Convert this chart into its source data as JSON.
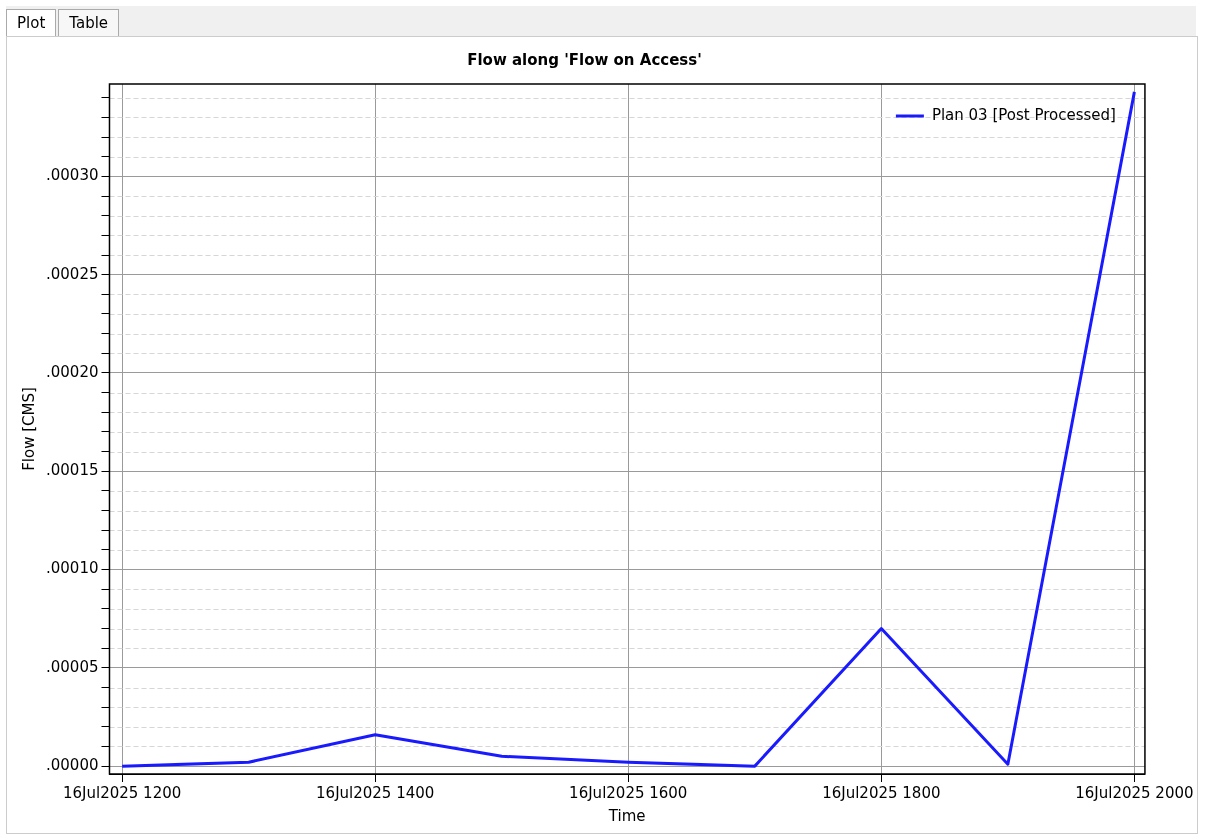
{
  "chart_data": {
    "type": "line",
    "title": "Flow along 'Flow on Access'",
    "xlabel": "Time",
    "ylabel": "Flow [CMS]",
    "annotations": [
      "Plot",
      "Table"
    ],
    "x": [
      "2025-07-16T12:00",
      "2025-07-16T13:00",
      "2025-07-16T14:00",
      "2025-07-16T15:00",
      "2025-07-16T16:00",
      "2025-07-16T17:00",
      "2025-07-16T18:00",
      "2025-07-16T19:00",
      "2025-07-16T20:00"
    ],
    "series": [
      {
        "name": "Plan 03 [Post Processed]",
        "color": "#1a1aff",
        "values": [
          0,
          2e-06,
          1.6e-05,
          5e-06,
          2e-06,
          0,
          7e-05,
          1e-06,
          0.000343
        ]
      }
    ],
    "xlim": [
      "2025-07-16T11:54",
      "2025-07-16T20:05"
    ],
    "xticks": [
      {
        "value": "2025-07-16T12:00",
        "label": "16Jul2025 1200"
      },
      {
        "value": "2025-07-16T14:00",
        "label": "16Jul2025 1400"
      },
      {
        "value": "2025-07-16T16:00",
        "label": "16Jul2025 1600"
      },
      {
        "value": "2025-07-16T18:00",
        "label": "16Jul2025 1800"
      },
      {
        "value": "2025-07-16T20:00",
        "label": "16Jul2025 2000"
      }
    ],
    "ylim": [
      -4e-06,
      0.000347
    ],
    "yticks": [
      {
        "value": 0,
        "label": ".00000"
      },
      {
        "value": 1e-05,
        "label": null
      },
      {
        "value": 2e-05,
        "label": null
      },
      {
        "value": 3e-05,
        "label": null
      },
      {
        "value": 4e-05,
        "label": null
      },
      {
        "value": 5e-05,
        "label": ".00005"
      },
      {
        "value": 6e-05,
        "label": null
      },
      {
        "value": 7e-05,
        "label": null
      },
      {
        "value": 8e-05,
        "label": null
      },
      {
        "value": 9e-05,
        "label": null
      },
      {
        "value": 0.0001,
        "label": ".00010"
      },
      {
        "value": 0.00011,
        "label": null
      },
      {
        "value": 0.00012,
        "label": null
      },
      {
        "value": 0.00013,
        "label": null
      },
      {
        "value": 0.00014,
        "label": null
      },
      {
        "value": 0.00015,
        "label": ".00015"
      },
      {
        "value": 0.00016,
        "label": null
      },
      {
        "value": 0.00017,
        "label": null
      },
      {
        "value": 0.00018,
        "label": null
      },
      {
        "value": 0.00019,
        "label": null
      },
      {
        "value": 0.0002,
        "label": ".00020"
      },
      {
        "value": 0.00021,
        "label": null
      },
      {
        "value": 0.00022,
        "label": null
      },
      {
        "value": 0.00023,
        "label": null
      },
      {
        "value": 0.00024,
        "label": null
      },
      {
        "value": 0.00025,
        "label": ".00025"
      },
      {
        "value": 0.00026,
        "label": null
      },
      {
        "value": 0.00027,
        "label": null
      },
      {
        "value": 0.00028,
        "label": null
      },
      {
        "value": 0.00029,
        "label": null
      },
      {
        "value": 0.0003,
        "label": ".00030"
      },
      {
        "value": 0.00031,
        "label": null
      },
      {
        "value": 0.00032,
        "label": null
      },
      {
        "value": 0.00033,
        "label": null
      },
      {
        "value": 0.00034,
        "label": null
      }
    ],
    "grid": true,
    "legend": "top right",
    "marker": "none",
    "line_style": "solid"
  }
}
